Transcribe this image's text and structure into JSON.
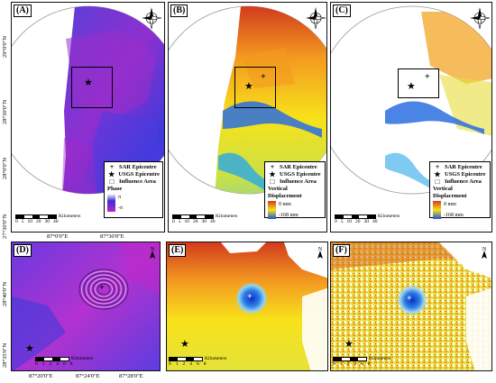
{
  "panels": {
    "a": {
      "tag": "(A)"
    },
    "b": {
      "tag": "(B)"
    },
    "c": {
      "tag": "(C)"
    },
    "d": {
      "tag": "(D)"
    },
    "e": {
      "tag": "(E)"
    },
    "f": {
      "tag": "(F)"
    }
  },
  "legend": {
    "sar_epicentre": "SAR Epicentre",
    "usgs_epicentre": "USGS Epicentre",
    "influence_area": "Influence Area",
    "phase_title": "Phase",
    "phase_max": "π",
    "phase_min": "-π",
    "vd_title": "Vertical Displacement",
    "vd_max": "0 mm",
    "vd_min": "-168 mm"
  },
  "scale_large": {
    "unit": "Kilometers",
    "ticks": [
      "0",
      "5",
      "10",
      "20",
      "30",
      "40"
    ]
  },
  "scale_small": {
    "unit": "Kilometers",
    "ticks": [
      "0",
      "1",
      "2",
      "4",
      "6",
      "8"
    ]
  },
  "lat_labels_top": [
    "29°0'0\"N",
    "28°30'0\"N",
    "28°0'0\"N",
    "27°30'0\"N"
  ],
  "lon_labels_top": [
    "87°0'0\"E",
    "87°30'0\"E"
  ],
  "lat_labels_bottom": [
    "28°40'0\"N",
    "28°35'0\"N"
  ],
  "lon_labels_bottom": [
    "87°20'0\"E",
    "87°24'0\"E",
    "87°28'0\"E"
  ],
  "compass": {
    "n": "N",
    "e": "E",
    "s": "S",
    "w": "W"
  },
  "colors": {
    "phase_top": "#ffffff",
    "phase_low": "#3a2fd6",
    "phase_high": "#c025c8",
    "vd_zero": "#d23b1c",
    "vd_mid": "#f7e21a",
    "vd_min": "#1f4fd9"
  }
}
